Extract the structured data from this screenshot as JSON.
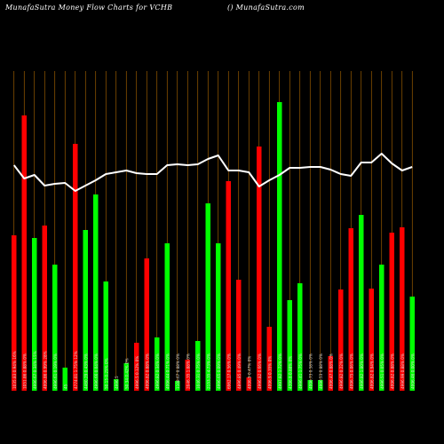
{
  "header": {
    "title": "MunafaSutra  Money Flow  Charts for VCHB",
    "site": "() MunafaSutra.com"
  },
  "colors": {
    "background": "#000000",
    "up_bar": "#00ff00",
    "down_bar": "#ff0000",
    "grid": "#b36b00",
    "line": "#ffffff",
    "label": "#d9d9d9"
  },
  "chart_data": {
    "type": "bar",
    "grid": true,
    "legend": "none",
    "series": [
      {
        "values": [
          175,
          310,
          172,
          186,
          142,
          26,
          278,
          181,
          221,
          123,
          13,
          31,
          54,
          149,
          60,
          166,
          11,
          35,
          56,
          211,
          166,
          236,
          125,
          15,
          275,
          72,
          325,
          102,
          121,
          12,
          12,
          39,
          114,
          183,
          198,
          115,
          142,
          178,
          184,
          106
        ],
        "colors": [
          "red",
          "red",
          "green",
          "red",
          "green",
          "green",
          "red",
          "green",
          "green",
          "green",
          "green",
          "green",
          "red",
          "red",
          "green",
          "green",
          "green",
          "red",
          "green",
          "green",
          "green",
          "red",
          "red",
          "red",
          "red",
          "red",
          "green",
          "green",
          "green",
          "green",
          "green",
          "red",
          "red",
          "red",
          "green",
          "red",
          "green",
          "red",
          "red",
          "green"
        ]
      },
      {
        "type": "line",
        "values": [
          254,
          239,
          243,
          231,
          233,
          234,
          225,
          231,
          237,
          244,
          246,
          248,
          245,
          244,
          244,
          254,
          255,
          254,
          255,
          261,
          265,
          248,
          248,
          246,
          230,
          237,
          243,
          251,
          251,
          252,
          252,
          249,
          244,
          242,
          257,
          257,
          267,
          256,
          248,
          252
        ]
      }
    ],
    "x_labels": [
      "1035.83 0.94% 16%",
      "1051.86 0.88% 0%",
      "4996.67 0.34% 15%",
      "4996.86 0.99% 28%",
      "4996.61 0.19% 0%",
      "45",
      "4774.01 1.75% 12%",
      "4460.29 0.43% 0%",
      "4996.66 0.04% 0%",
      "50.15 0.25% 0%",
      "4996.5",
      "50.34 0.42% 0%",
      "4996.5 0.12% 0%",
      "4996.82 0.88% 0%",
      "4996.82 0.34% 0%",
      "4996.44 0.71% 0%",
      "1108.67 0.88% 0%",
      "2046.35 1.88% 0%",
      "1046.31 0.75% 0%",
      "2153.35 4.73% 0%",
      "4996.65 0.09% 0%",
      "6962.17 0.56% 0%",
      "4896.85 0.49% 0%",
      "4996.9 0.47% 0%",
      "4996.82 0.66% 0%",
      "4996.9 0.35% 0%",
      "4997.82 1.72% 0%",
      "4396.8 0.88% 0%",
      "4996.41 1.75% 0%",
      "4996.73 0.58% 0%",
      "4996.53 0.88% 0%",
      "4996.47 0.88% 0%",
      "4996.82 0.22% 0%",
      "4996.75 0.06% 0%",
      "4996.82 1.80% 0%",
      "4996.82 0.94% 0%",
      "4996.51 0.05% 0%",
      "4996.82 0.88% 0%",
      "4996.99 0.88% 0%",
      "4996.46 0.00% 0%"
    ]
  }
}
